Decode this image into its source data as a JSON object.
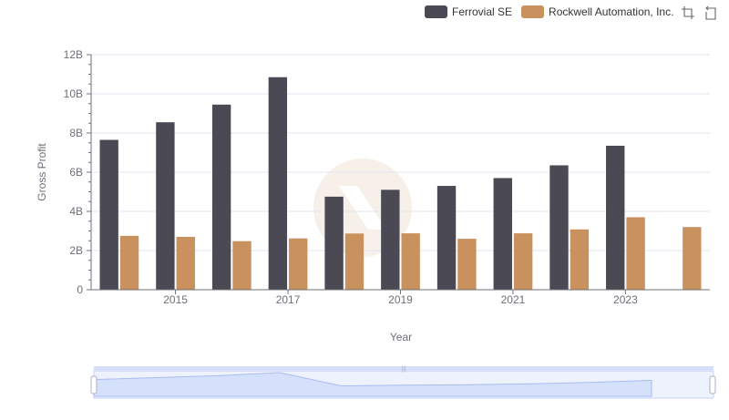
{
  "legend": {
    "items": [
      {
        "label": "Ferrovial SE",
        "color": "#4a4954"
      },
      {
        "label": "Rockwell Automation, Inc.",
        "color": "#c8915e"
      }
    ]
  },
  "toolbox": {
    "icons": [
      "zoom-select-icon",
      "zoom-reset-icon"
    ]
  },
  "chart_data": {
    "type": "bar",
    "xlabel": "Year",
    "ylabel": "Gross Profit",
    "x_tick_labels": [
      "2015",
      "2017",
      "2019",
      "2021",
      "2023"
    ],
    "y_tick_labels": [
      "0",
      "2B",
      "4B",
      "6B",
      "8B",
      "10B",
      "12B"
    ],
    "ylim": [
      0,
      12000000000
    ],
    "grid": true,
    "legend_position": "top-right",
    "categories": [
      "2014",
      "2015",
      "2016",
      "2017",
      "2018",
      "2019",
      "2020",
      "2021",
      "2022",
      "2023",
      "2024"
    ],
    "series": [
      {
        "name": "Ferrovial SE",
        "color": "#4a4954",
        "values": [
          7650000000,
          8550000000,
          9450000000,
          10850000000,
          4750000000,
          5100000000,
          5300000000,
          5700000000,
          6350000000,
          7350000000,
          null
        ]
      },
      {
        "name": "Rockwell Automation, Inc.",
        "color": "#c8915e",
        "values": [
          2750000000,
          2700000000,
          2480000000,
          2620000000,
          2870000000,
          2880000000,
          2600000000,
          2880000000,
          3080000000,
          3700000000,
          3200000000
        ]
      }
    ]
  }
}
